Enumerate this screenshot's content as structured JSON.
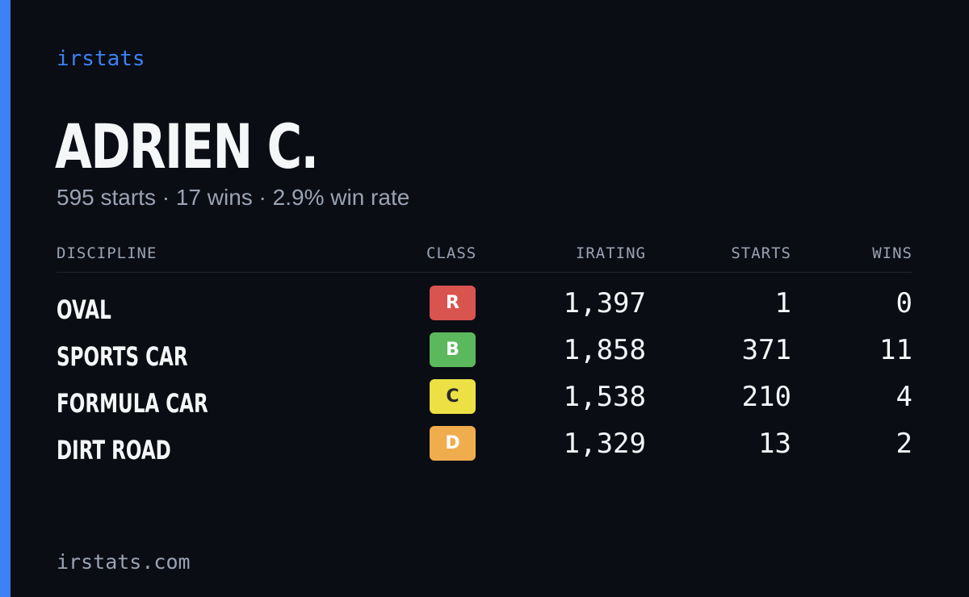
{
  "brand": "irstats",
  "driver": {
    "name": "ADRIEN C.",
    "summary": "595 starts · 17 wins · 2.9% win rate"
  },
  "table": {
    "headers": {
      "discipline": "DISCIPLINE",
      "class": "CLASS",
      "irating": "IRATING",
      "starts": "STARTS",
      "wins": "WINS"
    },
    "rows": [
      {
        "discipline": "OVAL",
        "class": "R",
        "class_color": "#d9534f",
        "class_text_color": "#ffffff",
        "irating": "1,397",
        "starts": "1",
        "wins": "0"
      },
      {
        "discipline": "SPORTS CAR",
        "class": "B",
        "class_color": "#5cb85c",
        "class_text_color": "#ffffff",
        "irating": "1,858",
        "starts": "371",
        "wins": "11"
      },
      {
        "discipline": "FORMULA CAR",
        "class": "C",
        "class_color": "#ece045",
        "class_text_color": "#2a2a2a",
        "irating": "1,538",
        "starts": "210",
        "wins": "4"
      },
      {
        "discipline": "DIRT ROAD",
        "class": "D",
        "class_color": "#f0ad4e",
        "class_text_color": "#ffffff",
        "irating": "1,329",
        "starts": "13",
        "wins": "2"
      }
    ]
  },
  "footer": "irstats.com",
  "colors": {
    "accent": "#3b82f6",
    "background": "#0a0d14",
    "muted_text": "#9aa3b4",
    "primary_text": "#f5f6f8"
  }
}
